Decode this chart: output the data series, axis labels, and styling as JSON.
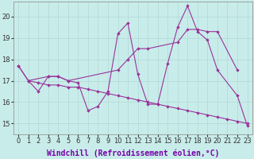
{
  "xlabel": "Windchill (Refroidissement éolien,°C)",
  "bg_color": "#c8ecea",
  "line_color": "#993399",
  "grid_color": "#b0d8d4",
  "x_ticks": [
    0,
    1,
    2,
    3,
    4,
    5,
    6,
    7,
    8,
    9,
    10,
    11,
    12,
    13,
    14,
    15,
    16,
    17,
    18,
    19,
    20,
    21,
    22,
    23
  ],
  "y_ticks": [
    15,
    16,
    17,
    18,
    19,
    20
  ],
  "xlim": [
    -0.5,
    23.5
  ],
  "ylim": [
    14.5,
    20.7
  ],
  "series": [
    {
      "points": [
        [
          0,
          17.7
        ],
        [
          1,
          17.0
        ],
        [
          2,
          16.5
        ],
        [
          3,
          17.2
        ],
        [
          4,
          17.2
        ],
        [
          5,
          17.0
        ],
        [
          6,
          16.9
        ],
        [
          7,
          15.6
        ],
        [
          8,
          15.8
        ],
        [
          9,
          16.5
        ],
        [
          10,
          19.2
        ],
        [
          11,
          19.7
        ],
        [
          12,
          17.3
        ],
        [
          13,
          15.9
        ],
        [
          14,
          15.9
        ],
        [
          15,
          17.8
        ],
        [
          16,
          19.5
        ],
        [
          17,
          20.5
        ],
        [
          18,
          19.3
        ],
        [
          19,
          18.9
        ],
        [
          20,
          17.5
        ],
        [
          22,
          16.3
        ],
        [
          23,
          14.9
        ]
      ]
    },
    {
      "points": [
        [
          1,
          17.0
        ],
        [
          3,
          17.2
        ],
        [
          4,
          17.2
        ],
        [
          5,
          17.0
        ],
        [
          10,
          17.5
        ],
        [
          11,
          18.0
        ],
        [
          12,
          18.5
        ],
        [
          13,
          18.5
        ],
        [
          16,
          18.8
        ],
        [
          17,
          19.4
        ],
        [
          18,
          19.4
        ],
        [
          19,
          19.3
        ],
        [
          20,
          19.3
        ],
        [
          22,
          17.5
        ]
      ]
    },
    {
      "points": [
        [
          0,
          17.7
        ],
        [
          1,
          17.0
        ],
        [
          2,
          16.9
        ],
        [
          3,
          16.8
        ],
        [
          4,
          16.8
        ],
        [
          5,
          16.7
        ],
        [
          6,
          16.7
        ],
        [
          7,
          16.6
        ],
        [
          8,
          16.5
        ],
        [
          9,
          16.4
        ],
        [
          10,
          16.3
        ],
        [
          11,
          16.2
        ],
        [
          12,
          16.1
        ],
        [
          13,
          16.0
        ],
        [
          14,
          15.9
        ],
        [
          15,
          15.8
        ],
        [
          16,
          15.7
        ],
        [
          17,
          15.6
        ],
        [
          18,
          15.5
        ],
        [
          19,
          15.4
        ],
        [
          20,
          15.3
        ],
        [
          21,
          15.2
        ],
        [
          22,
          15.1
        ],
        [
          23,
          15.0
        ]
      ]
    }
  ],
  "tick_fontsize": 6,
  "label_fontsize": 7,
  "markersize": 2.0,
  "linewidth": 0.8
}
